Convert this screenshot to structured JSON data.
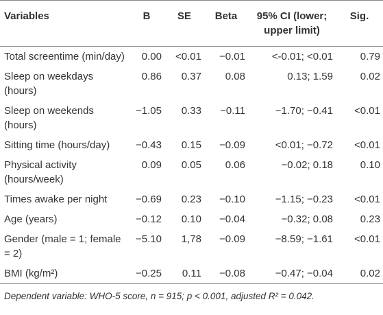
{
  "table": {
    "header": [
      "Variables",
      "B",
      "SE",
      "Beta",
      "95% CI (lower; upper limit)",
      "Sig."
    ],
    "rows": [
      [
        "Total screentime (min/day)",
        "0.00",
        "<0.01",
        "−0.01",
        "<-0.01; <0.01",
        "0.79"
      ],
      [
        "Sleep on weekdays (hours)",
        "0.86",
        "0.37",
        "0.08",
        "0.13; 1.59",
        "0.02"
      ],
      [
        "Sleep on weekends (hours)",
        "−1.05",
        "0.33",
        "−0.11",
        "−1.70; −0.41",
        "<0.01"
      ],
      [
        "Sitting time (hours/day)",
        "−0.43",
        "0.15",
        "−0.09",
        "<0.01; −0.72",
        "<0.01"
      ],
      [
        "Physical activity (hours/week)",
        "0.09",
        "0.05",
        "0.06",
        "−0.02; 0.18",
        "0.10"
      ],
      [
        "Times awake per night",
        "−0.69",
        "0.23",
        "−0.10",
        "−1.15; −0.23",
        "<0.01"
      ],
      [
        "Age (years)",
        "−0.12",
        "0.10",
        "−0.04",
        "−0.32; 0.08",
        "0.23"
      ],
      [
        "Gender (male = 1; female = 2)",
        "−5.10",
        "1,78",
        "−0.09",
        "−8.59; −1.61",
        "<0.01"
      ],
      [
        "BMI (kg/m²)",
        "−0.25",
        "0.11",
        "−0.08",
        "−0.47; −0.04",
        "0.02"
      ]
    ],
    "footnote": "Dependent variable: WHO-5 score, n = 915; p < 0.001, adjusted R² = 0.042."
  }
}
